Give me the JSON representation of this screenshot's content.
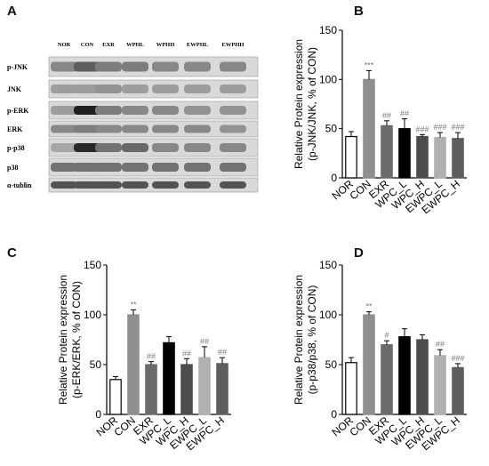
{
  "panels": {
    "A": "A",
    "B": "B",
    "C": "C",
    "D": "D"
  },
  "blot": {
    "lanes": [
      "NOR",
      "CON",
      "EXR",
      "WPHL",
      "WPHH",
      "EWPHL",
      "EWPHH"
    ],
    "rows": [
      "p-JNK",
      "JNK",
      "p-ERK",
      "ERK",
      "p-p38",
      "p38",
      "α-tublin"
    ]
  },
  "chart_data": [
    {
      "type": "bar",
      "panel": "B",
      "categories": [
        "NOR",
        "CON",
        "EXR",
        "WPC_L",
        "WPC_H",
        "EWPC_L",
        "EWPC_H"
      ],
      "values": [
        42,
        100,
        53,
        50,
        42,
        41,
        40
      ],
      "errors": [
        5,
        9,
        5,
        10,
        2,
        5,
        6
      ],
      "annotations": [
        "",
        "***",
        "##",
        "##",
        "###",
        "###",
        "###"
      ],
      "ylabel_line1": "Relative Protein expression",
      "ylabel_line2": "(p-JNK/JNK, % of CON)",
      "ylim": [
        0,
        150
      ],
      "yticks": [
        0,
        50,
        100,
        150
      ],
      "colors": [
        "#ffffff",
        "#8f8f8f",
        "#6b6b6b",
        "#000000",
        "#4d4d4d",
        "#b0b0b0",
        "#5e5e5e"
      ]
    },
    {
      "type": "bar",
      "panel": "C",
      "categories": [
        "NOR",
        "CON",
        "EXR",
        "WPC_L",
        "WPC_H",
        "EWPC_L",
        "EWPC_H"
      ],
      "values": [
        35,
        100,
        50,
        72,
        50,
        57,
        51
      ],
      "errors": [
        3,
        5,
        3,
        6,
        6,
        11,
        6
      ],
      "annotations": [
        "",
        "**",
        "##",
        "",
        "##",
        "##",
        "##"
      ],
      "ylabel_line1": "Relative Protein expression",
      "ylabel_line2": "(p-ERK/ERK, % of CON)",
      "ylim": [
        0,
        150
      ],
      "yticks": [
        0,
        50,
        100,
        150
      ],
      "colors": [
        "#ffffff",
        "#8f8f8f",
        "#6b6b6b",
        "#000000",
        "#4d4d4d",
        "#b0b0b0",
        "#5e5e5e"
      ]
    },
    {
      "type": "bar",
      "panel": "D",
      "categories": [
        "NOR",
        "CON",
        "EXR",
        "WPC_L",
        "WPC_H",
        "EWPC_L",
        "EWPC_H"
      ],
      "values": [
        52,
        100,
        70,
        78,
        75,
        59,
        47
      ],
      "errors": [
        5,
        3,
        4,
        8,
        5,
        6,
        4
      ],
      "annotations": [
        "",
        "**",
        "#",
        "",
        "",
        "##",
        "###"
      ],
      "ylabel_line1": "Relative Protein expression",
      "ylabel_line2": "(p-p38/p38, % of CON)",
      "ylim": [
        0,
        150
      ],
      "yticks": [
        0,
        50,
        100,
        150
      ],
      "colors": [
        "#ffffff",
        "#8f8f8f",
        "#6b6b6b",
        "#000000",
        "#4d4d4d",
        "#b0b0b0",
        "#5e5e5e"
      ]
    }
  ]
}
